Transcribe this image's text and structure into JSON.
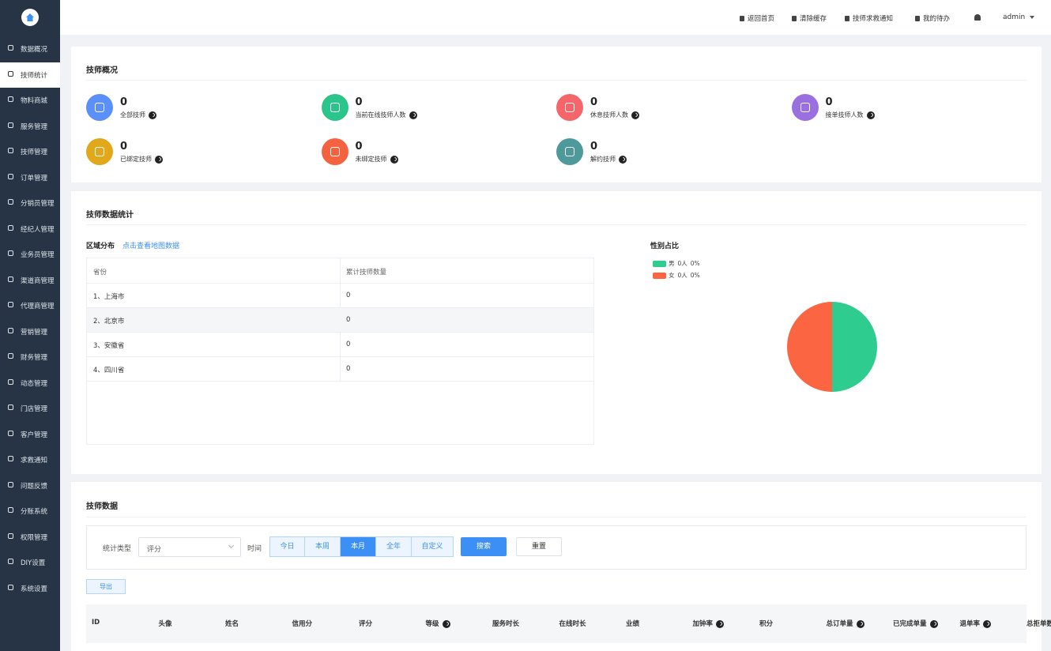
{
  "sidebar": {
    "items": [
      "数据概况",
      "技师统计",
      "物料商城",
      "服务管理",
      "技师管理",
      "订单管理",
      "分销员管理",
      "经纪人管理",
      "业务员管理",
      "渠道商管理",
      "代理商管理",
      "营销管理",
      "财务管理",
      "动态管理",
      "门店管理",
      "客户管理",
      "求救通知",
      "问题反馈",
      "分账系统",
      "权限管理",
      "DIY设置",
      "系统设置"
    ],
    "active": 1
  },
  "topbar": {
    "links": [
      "返回首页",
      "清除缓存",
      "技师求救通知",
      "我的待办"
    ],
    "user": "admin"
  },
  "overview": {
    "title": "技师概况",
    "stats": [
      {
        "value": 0,
        "label": "全部技师",
        "color": "#5b8ff9"
      },
      {
        "value": 0,
        "label": "当前在线技师人数",
        "color": "#2bc48a"
      },
      {
        "value": 0,
        "label": "休息技师人数",
        "color": "#f4666a"
      },
      {
        "value": 0,
        "label": "接单技师人数",
        "color": "#9a6fe0"
      },
      {
        "value": 0,
        "label": "已绑定技师",
        "color": "#e0a81a"
      },
      {
        "value": 0,
        "label": "未绑定技师",
        "color": "#f4623f"
      },
      {
        "value": 0,
        "label": "解约技师",
        "color": "#4e9a9a"
      }
    ]
  },
  "stats": {
    "title": "技师数据统计",
    "region_title": "区域分布",
    "region_link": "点击查看地图数据",
    "table": {
      "headers": [
        "省份",
        "累计技师数量"
      ],
      "rows": [
        [
          "1、上海市",
          0
        ],
        [
          "2、北京市",
          0
        ],
        [
          "3、安徽省",
          0
        ],
        [
          "4、四川省",
          0
        ]
      ],
      "hover_row": 1
    },
    "gender": {
      "title": "性别占比",
      "slices": [
        {
          "name": "男",
          "count": "0人",
          "value": 0,
          "value_label": "0%",
          "color": "#2ecc8e"
        },
        {
          "name": "女",
          "count": "0人",
          "value": 0,
          "value_label": "0%",
          "color": "#fb6542"
        }
      ]
    }
  },
  "records": {
    "title": "技师数据",
    "filter_label": "统计类型",
    "select": "评分",
    "time_label": "时间",
    "time_tabs": [
      "今日",
      "本周",
      "本月",
      "全年",
      "自定义"
    ],
    "active_tab": 2,
    "search": "搜索",
    "reset": "重置",
    "export": "导出",
    "columns": [
      {
        "text": "ID",
        "help": false
      },
      {
        "text": "头像",
        "help": false
      },
      {
        "text": "姓名",
        "help": false
      },
      {
        "text": "信用分",
        "help": false
      },
      {
        "text": "评分",
        "help": false
      },
      {
        "text": "等级",
        "help": true
      },
      {
        "text": "服务时长",
        "help": false
      },
      {
        "text": "在线时长",
        "help": false
      },
      {
        "text": "业绩",
        "help": false
      },
      {
        "text": "加钟率",
        "help": true
      },
      {
        "text": "积分",
        "help": false
      },
      {
        "text": "总订单量",
        "help": true
      },
      {
        "text": "已完成单量",
        "help": true
      },
      {
        "text": "退单率",
        "help": true
      },
      {
        "text": "总拒单数",
        "help": false
      }
    ]
  }
}
